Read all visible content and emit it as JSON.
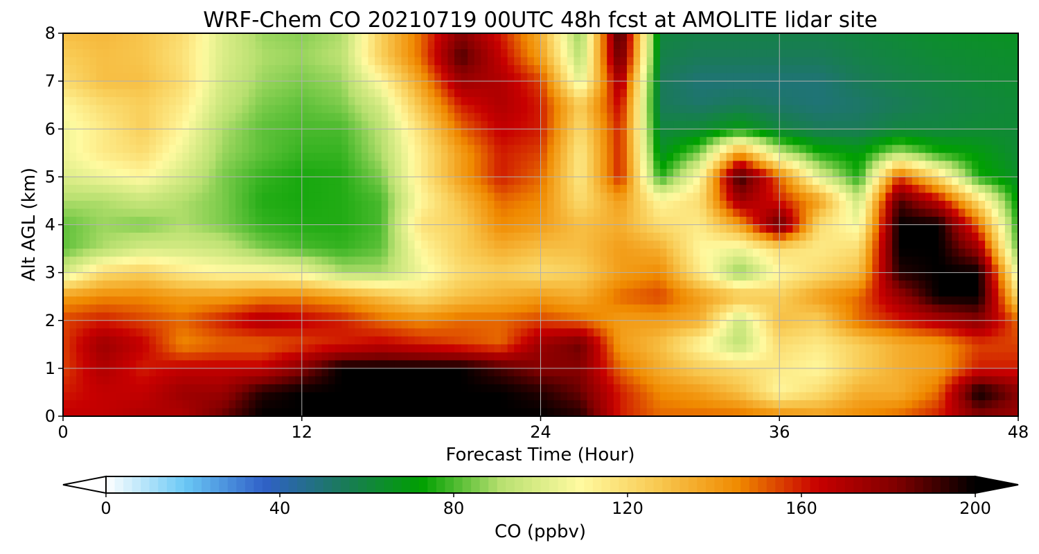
{
  "chart_data": {
    "type": "heatmap",
    "title": "WRF-Chem CO  20210719 00UTC 48h fcst at AMOLITE lidar site",
    "xlabel": "Forecast Time (Hour)",
    "ylabel": "Alt AGL (km)",
    "xlim": [
      0,
      48
    ],
    "ylim": [
      0,
      8
    ],
    "x_ticks": [
      "0",
      "12",
      "24",
      "36",
      "48"
    ],
    "y_ticks": [
      "0",
      "1",
      "2",
      "3",
      "4",
      "5",
      "6",
      "7",
      "8"
    ],
    "grid": true,
    "colorbar": {
      "label": "CO  (ppbv)",
      "range": [
        0,
        200
      ],
      "ticks": [
        "0",
        "40",
        "80",
        "120",
        "160",
        "200"
      ],
      "extend": "both",
      "colors": [
        "#ffffff",
        "#6ac8f5",
        "#3060c8",
        "#1a7a5a",
        "#00a000",
        "#b8e070",
        "#fffaa0",
        "#f8c850",
        "#f08a00",
        "#c80000",
        "#800000",
        "#000000"
      ]
    },
    "x_hours": [
      0,
      2,
      4,
      6,
      8,
      10,
      12,
      14,
      16,
      18,
      20,
      22,
      24,
      26,
      28,
      30,
      32,
      34,
      36,
      38,
      40,
      42,
      44,
      46,
      48
    ],
    "alt_km": [
      0,
      0.5,
      1,
      1.5,
      2,
      2.5,
      3,
      3.5,
      4,
      4.5,
      5,
      5.5,
      6,
      6.5,
      7,
      7.5,
      8
    ],
    "co_ppbv": [
      [
        165,
        165,
        170,
        170,
        185,
        200,
        200,
        200,
        200,
        200,
        200,
        200,
        200,
        195,
        160,
        150,
        150,
        150,
        145,
        140,
        145,
        150,
        160,
        180,
        175
      ],
      [
        160,
        165,
        165,
        175,
        175,
        195,
        200,
        200,
        200,
        200,
        200,
        200,
        195,
        185,
        160,
        145,
        140,
        130,
        110,
        120,
        135,
        135,
        150,
        200,
        180
      ],
      [
        155,
        170,
        160,
        165,
        165,
        165,
        180,
        200,
        200,
        200,
        200,
        190,
        180,
        180,
        150,
        135,
        125,
        120,
        115,
        110,
        125,
        135,
        140,
        160,
        160
      ],
      [
        155,
        175,
        165,
        145,
        150,
        150,
        155,
        160,
        165,
        160,
        155,
        150,
        175,
        185,
        140,
        130,
        110,
        92,
        120,
        115,
        125,
        135,
        140,
        155,
        155
      ],
      [
        155,
        160,
        155,
        150,
        160,
        170,
        165,
        160,
        150,
        145,
        150,
        150,
        155,
        150,
        140,
        140,
        135,
        95,
        130,
        125,
        150,
        160,
        170,
        180,
        150
      ],
      [
        140,
        145,
        145,
        140,
        140,
        145,
        145,
        140,
        130,
        120,
        130,
        135,
        140,
        135,
        150,
        155,
        140,
        130,
        125,
        140,
        150,
        175,
        200,
        200,
        120
      ],
      [
        97,
        120,
        125,
        115,
        110,
        110,
        105,
        90,
        90,
        105,
        120,
        125,
        120,
        125,
        140,
        145,
        115,
        85,
        110,
        120,
        130,
        195,
        200,
        200,
        100
      ],
      [
        82,
        90,
        98,
        98,
        95,
        85,
        80,
        78,
        82,
        110,
        125,
        135,
        130,
        130,
        140,
        135,
        110,
        105,
        120,
        115,
        120,
        200,
        200,
        175,
        80
      ],
      [
        82,
        88,
        85,
        90,
        85,
        78,
        76,
        76,
        80,
        118,
        125,
        145,
        140,
        130,
        135,
        120,
        115,
        140,
        190,
        120,
        105,
        200,
        200,
        150,
        75
      ],
      [
        90,
        90,
        95,
        90,
        85,
        76,
        75,
        76,
        80,
        110,
        130,
        150,
        145,
        120,
        140,
        110,
        120,
        175,
        160,
        140,
        95,
        190,
        165,
        120,
        70
      ],
      [
        100,
        105,
        110,
        98,
        85,
        78,
        75,
        76,
        85,
        115,
        140,
        160,
        150,
        115,
        160,
        75,
        110,
        195,
        150,
        100,
        75,
        155,
        120,
        75,
        65
      ],
      [
        105,
        115,
        120,
        105,
        88,
        82,
        78,
        78,
        90,
        115,
        140,
        160,
        155,
        115,
        160,
        65,
        85,
        140,
        95,
        75,
        70,
        90,
        75,
        70,
        62
      ],
      [
        105,
        115,
        125,
        110,
        90,
        82,
        80,
        80,
        92,
        120,
        150,
        165,
        160,
        120,
        160,
        60,
        62,
        70,
        60,
        55,
        55,
        60,
        60,
        62,
        62
      ],
      [
        110,
        120,
        125,
        115,
        95,
        85,
        82,
        85,
        98,
        130,
        160,
        170,
        160,
        125,
        165,
        55,
        52,
        55,
        52,
        50,
        52,
        55,
        58,
        60,
        62
      ],
      [
        120,
        130,
        130,
        120,
        98,
        88,
        85,
        88,
        110,
        140,
        175,
        170,
        155,
        100,
        175,
        55,
        50,
        50,
        50,
        50,
        55,
        58,
        60,
        62,
        63
      ],
      [
        125,
        130,
        128,
        118,
        100,
        90,
        88,
        92,
        125,
        150,
        190,
        165,
        140,
        90,
        190,
        58,
        55,
        55,
        55,
        55,
        58,
        60,
        62,
        63,
        64
      ],
      [
        130,
        132,
        128,
        120,
        100,
        88,
        86,
        90,
        125,
        150,
        180,
        160,
        135,
        85,
        195,
        60,
        58,
        58,
        58,
        58,
        60,
        62,
        64,
        65,
        66
      ]
    ]
  }
}
